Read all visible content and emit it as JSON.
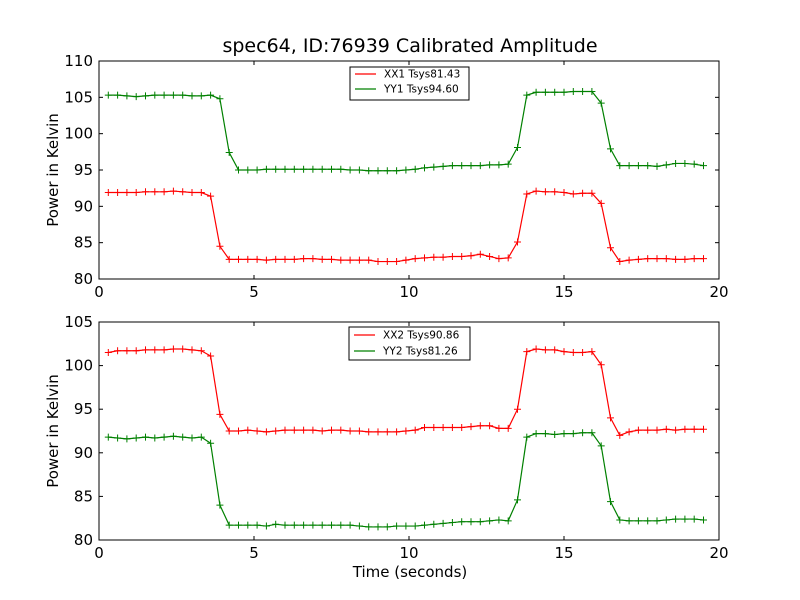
{
  "chart_data": [
    {
      "type": "line",
      "title": "spec64, ID:76939 Calibrated Amplitude",
      "xlabel": "",
      "ylabel": "Power in Kelvin",
      "xlim": [
        0,
        20
      ],
      "ylim": [
        80,
        110
      ],
      "x_ticks": [
        "0",
        "5",
        "10",
        "15",
        "20"
      ],
      "y_ticks": [
        "80",
        "85",
        "90",
        "95",
        "100",
        "105",
        "110"
      ],
      "legend_position": "top-center",
      "grid": false,
      "x": [
        0.3,
        0.6,
        0.9,
        1.2,
        1.5,
        1.8,
        2.1,
        2.4,
        2.7,
        3.0,
        3.3,
        3.6,
        3.9,
        4.2,
        4.5,
        4.8,
        5.1,
        5.4,
        5.7,
        6.0,
        6.3,
        6.6,
        6.9,
        7.2,
        7.5,
        7.8,
        8.1,
        8.4,
        8.7,
        9.0,
        9.3,
        9.6,
        9.9,
        10.2,
        10.5,
        10.8,
        11.1,
        11.4,
        11.7,
        12.0,
        12.3,
        12.6,
        12.9,
        13.2,
        13.5,
        13.8,
        14.1,
        14.4,
        14.7,
        15.0,
        15.3,
        15.6,
        15.9,
        16.2,
        16.5,
        16.8,
        17.1,
        17.4,
        17.7,
        18.0,
        18.3,
        18.6,
        18.9,
        19.2,
        19.5
      ],
      "series": [
        {
          "name": "XX1 Tsys81.43",
          "color": "#ff0000",
          "values": [
            91.9,
            91.9,
            91.9,
            91.9,
            92.0,
            92.0,
            92.0,
            92.1,
            92.0,
            91.9,
            91.9,
            91.4,
            84.5,
            82.7,
            82.7,
            82.7,
            82.7,
            82.6,
            82.7,
            82.7,
            82.7,
            82.8,
            82.8,
            82.7,
            82.7,
            82.6,
            82.6,
            82.6,
            82.6,
            82.4,
            82.4,
            82.4,
            82.6,
            82.8,
            82.9,
            83.0,
            83.0,
            83.1,
            83.1,
            83.2,
            83.4,
            83.1,
            82.8,
            82.9,
            85.1,
            91.7,
            92.1,
            92.0,
            92.0,
            91.9,
            91.7,
            91.8,
            91.8,
            90.4,
            84.3,
            82.4,
            82.6,
            82.7,
            82.8,
            82.8,
            82.8,
            82.7,
            82.7,
            82.8,
            82.8
          ]
        },
        {
          "name": "YY1 Tsys94.60",
          "color": "#008000",
          "values": [
            105.3,
            105.3,
            105.2,
            105.1,
            105.2,
            105.3,
            105.3,
            105.3,
            105.3,
            105.2,
            105.2,
            105.3,
            104.8,
            97.4,
            95.0,
            95.0,
            95.0,
            95.1,
            95.1,
            95.1,
            95.1,
            95.1,
            95.1,
            95.1,
            95.1,
            95.1,
            95.0,
            95.0,
            94.9,
            94.9,
            94.9,
            94.9,
            95.0,
            95.1,
            95.3,
            95.4,
            95.5,
            95.6,
            95.6,
            95.6,
            95.6,
            95.7,
            95.7,
            95.8,
            98.1,
            105.3,
            105.7,
            105.7,
            105.7,
            105.7,
            105.8,
            105.8,
            105.8,
            104.2,
            97.9,
            95.6,
            95.6,
            95.6,
            95.6,
            95.5,
            95.7,
            95.9,
            95.9,
            95.8,
            95.6
          ]
        }
      ]
    },
    {
      "type": "line",
      "title": "",
      "xlabel": "Time (seconds)",
      "ylabel": "Power in Kelvin",
      "xlim": [
        0,
        20
      ],
      "ylim": [
        80,
        105
      ],
      "x_ticks": [
        "0",
        "5",
        "10",
        "15",
        "20"
      ],
      "y_ticks": [
        "80",
        "85",
        "90",
        "95",
        "100",
        "105"
      ],
      "legend_position": "top-center",
      "grid": false,
      "x": [
        0.3,
        0.6,
        0.9,
        1.2,
        1.5,
        1.8,
        2.1,
        2.4,
        2.7,
        3.0,
        3.3,
        3.6,
        3.9,
        4.2,
        4.5,
        4.8,
        5.1,
        5.4,
        5.7,
        6.0,
        6.3,
        6.6,
        6.9,
        7.2,
        7.5,
        7.8,
        8.1,
        8.4,
        8.7,
        9.0,
        9.3,
        9.6,
        9.9,
        10.2,
        10.5,
        10.8,
        11.1,
        11.4,
        11.7,
        12.0,
        12.3,
        12.6,
        12.9,
        13.2,
        13.5,
        13.8,
        14.1,
        14.4,
        14.7,
        15.0,
        15.3,
        15.6,
        15.9,
        16.2,
        16.5,
        16.8,
        17.1,
        17.4,
        17.7,
        18.0,
        18.3,
        18.6,
        18.9,
        19.2,
        19.5
      ],
      "series": [
        {
          "name": "XX2 Tsys90.86",
          "color": "#ff0000",
          "values": [
            101.5,
            101.7,
            101.7,
            101.7,
            101.8,
            101.8,
            101.8,
            101.9,
            101.9,
            101.8,
            101.7,
            101.1,
            94.4,
            92.5,
            92.5,
            92.6,
            92.5,
            92.4,
            92.5,
            92.6,
            92.6,
            92.6,
            92.6,
            92.5,
            92.6,
            92.6,
            92.5,
            92.5,
            92.4,
            92.4,
            92.4,
            92.4,
            92.5,
            92.6,
            92.9,
            92.9,
            92.9,
            92.9,
            92.9,
            93.0,
            93.1,
            93.1,
            92.8,
            92.8,
            95.0,
            101.6,
            101.9,
            101.8,
            101.8,
            101.6,
            101.5,
            101.5,
            101.6,
            100.1,
            94.0,
            92.0,
            92.4,
            92.6,
            92.6,
            92.6,
            92.7,
            92.6,
            92.7,
            92.7,
            92.7
          ]
        },
        {
          "name": "YY2 Tsys81.26",
          "color": "#008000",
          "values": [
            91.8,
            91.7,
            91.6,
            91.7,
            91.8,
            91.7,
            91.8,
            91.9,
            91.8,
            91.7,
            91.8,
            91.1,
            84.0,
            81.7,
            81.7,
            81.7,
            81.7,
            81.6,
            81.8,
            81.7,
            81.7,
            81.7,
            81.7,
            81.7,
            81.7,
            81.7,
            81.7,
            81.6,
            81.5,
            81.5,
            81.5,
            81.6,
            81.6,
            81.6,
            81.7,
            81.8,
            81.9,
            82.0,
            82.1,
            82.1,
            82.1,
            82.2,
            82.3,
            82.2,
            84.6,
            91.8,
            92.2,
            92.2,
            92.1,
            92.2,
            92.2,
            92.3,
            92.3,
            90.8,
            84.4,
            82.3,
            82.2,
            82.2,
            82.2,
            82.2,
            82.3,
            82.4,
            82.4,
            82.4,
            82.3
          ]
        }
      ]
    }
  ]
}
